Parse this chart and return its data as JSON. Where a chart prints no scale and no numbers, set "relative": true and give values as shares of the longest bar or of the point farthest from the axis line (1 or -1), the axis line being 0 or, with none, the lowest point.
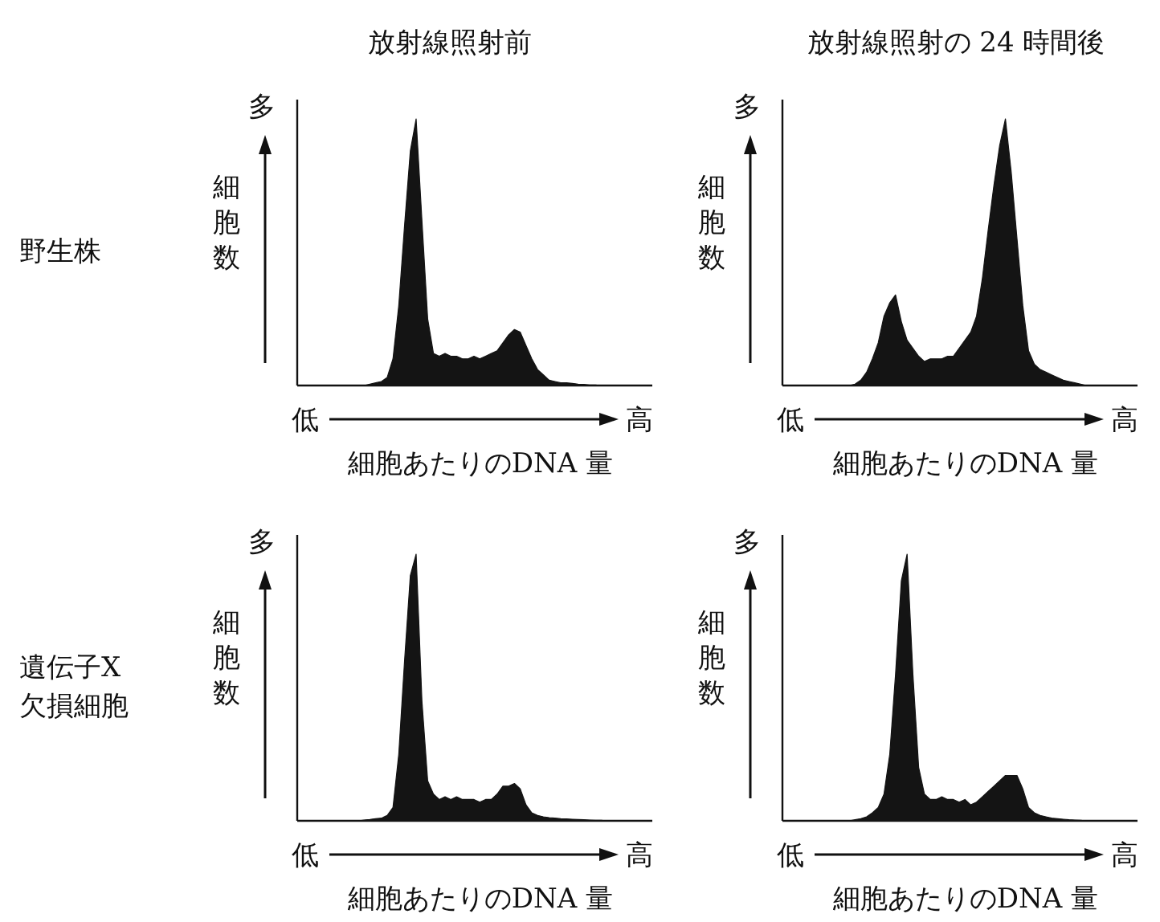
{
  "chart_data": [
    {
      "type": "area",
      "title": "放射線照射前",
      "ylabel": "細胞数",
      "xlabel": "細胞あたりのDNA 量",
      "annotations": [
        "多",
        "低",
        "高",
        "野生株"
      ],
      "relative": true,
      "color": "#141414",
      "categories": [
        null,
        null,
        null,
        null,
        null,
        null,
        null,
        null,
        null,
        null,
        null,
        null,
        null,
        null,
        null,
        null,
        null,
        null,
        null,
        null,
        null,
        null,
        null,
        null,
        null,
        null,
        null,
        null,
        null,
        null,
        null,
        null,
        null,
        null,
        null,
        null,
        null,
        null,
        null,
        null,
        null,
        null,
        null,
        null,
        null,
        null,
        null,
        null,
        null,
        null,
        null,
        null,
        null,
        null,
        null,
        null,
        null,
        null,
        null,
        null,
        null
      ],
      "values": [
        0,
        0,
        0,
        0,
        0,
        0,
        0,
        0,
        0,
        0,
        0,
        0,
        0.005,
        0.01,
        0.015,
        0.03,
        0.1,
        0.3,
        0.6,
        0.88,
        1.0,
        0.62,
        0.25,
        0.12,
        0.11,
        0.12,
        0.11,
        0.11,
        0.1,
        0.1,
        0.11,
        0.1,
        0.11,
        0.12,
        0.13,
        0.16,
        0.19,
        0.21,
        0.2,
        0.15,
        0.1,
        0.06,
        0.04,
        0.02,
        0.015,
        0.01,
        0.01,
        0.008,
        0.005,
        0.004,
        0.002,
        0.002,
        0,
        0,
        0,
        0,
        0,
        0,
        0,
        0,
        0
      ]
    },
    {
      "type": "area",
      "title": "放射線照射の 24 時間後",
      "ylabel": "細胞数",
      "xlabel": "細胞あたりのDNA 量",
      "annotations": [
        "多",
        "低",
        "高"
      ],
      "relative": true,
      "color": "#141414",
      "categories": [
        null,
        null,
        null,
        null,
        null,
        null,
        null,
        null,
        null,
        null,
        null,
        null,
        null,
        null,
        null,
        null,
        null,
        null,
        null,
        null,
        null,
        null,
        null,
        null,
        null,
        null,
        null,
        null,
        null,
        null,
        null,
        null,
        null,
        null,
        null,
        null,
        null,
        null,
        null,
        null,
        null,
        null,
        null,
        null,
        null,
        null,
        null,
        null,
        null,
        null,
        null,
        null,
        null,
        null,
        null,
        null,
        null,
        null,
        null,
        null,
        null
      ],
      "values": [
        0,
        0,
        0,
        0,
        0,
        0,
        0,
        0,
        0,
        0,
        0,
        0,
        0.005,
        0.02,
        0.05,
        0.1,
        0.16,
        0.26,
        0.31,
        0.34,
        0.24,
        0.17,
        0.14,
        0.11,
        0.09,
        0.1,
        0.1,
        0.1,
        0.11,
        0.11,
        0.14,
        0.17,
        0.2,
        0.26,
        0.4,
        0.58,
        0.75,
        0.9,
        1.0,
        0.8,
        0.55,
        0.3,
        0.13,
        0.08,
        0.06,
        0.05,
        0.04,
        0.03,
        0.02,
        0.015,
        0.01,
        0.005,
        0,
        0,
        0,
        0,
        0,
        0,
        0,
        0,
        0
      ]
    },
    {
      "type": "area",
      "ylabel": "細胞数",
      "xlabel": "細胞あたりのDNA 量",
      "annotations": [
        "多",
        "低",
        "高",
        "遺伝子X欠損細胞"
      ],
      "relative": true,
      "color": "#141414",
      "categories": [
        null,
        null,
        null,
        null,
        null,
        null,
        null,
        null,
        null,
        null,
        null,
        null,
        null,
        null,
        null,
        null,
        null,
        null,
        null,
        null,
        null,
        null,
        null,
        null,
        null,
        null,
        null,
        null,
        null,
        null,
        null,
        null,
        null,
        null,
        null,
        null,
        null,
        null,
        null,
        null,
        null,
        null,
        null,
        null,
        null,
        null,
        null,
        null,
        null,
        null,
        null,
        null,
        null,
        null,
        null,
        null,
        null,
        null,
        null,
        null,
        null
      ],
      "values": [
        0,
        0,
        0,
        0,
        0,
        0,
        0,
        0,
        0,
        0,
        0,
        0.003,
        0.005,
        0.008,
        0.01,
        0.02,
        0.05,
        0.25,
        0.6,
        0.92,
        1.0,
        0.45,
        0.15,
        0.1,
        0.08,
        0.09,
        0.08,
        0.09,
        0.08,
        0.08,
        0.08,
        0.07,
        0.08,
        0.08,
        0.1,
        0.13,
        0.13,
        0.14,
        0.12,
        0.06,
        0.03,
        0.02,
        0.015,
        0.012,
        0.01,
        0.008,
        0.007,
        0.006,
        0.005,
        0.004,
        0.003,
        0.002,
        0.002,
        0,
        0,
        0,
        0,
        0,
        0,
        0,
        0
      ]
    },
    {
      "type": "area",
      "ylabel": "細胞数",
      "xlabel": "細胞あたりのDNA 量",
      "annotations": [
        "多",
        "低",
        "高"
      ],
      "relative": true,
      "color": "#141414",
      "categories": [
        null,
        null,
        null,
        null,
        null,
        null,
        null,
        null,
        null,
        null,
        null,
        null,
        null,
        null,
        null,
        null,
        null,
        null,
        null,
        null,
        null,
        null,
        null,
        null,
        null,
        null,
        null,
        null,
        null,
        null,
        null,
        null,
        null,
        null,
        null,
        null,
        null,
        null,
        null,
        null,
        null,
        null,
        null,
        null,
        null,
        null,
        null,
        null,
        null,
        null,
        null,
        null,
        null,
        null,
        null,
        null,
        null,
        null,
        null,
        null,
        null
      ],
      "values": [
        0,
        0,
        0,
        0,
        0,
        0,
        0,
        0,
        0,
        0,
        0,
        0,
        0.004,
        0.008,
        0.015,
        0.03,
        0.05,
        0.1,
        0.25,
        0.55,
        0.9,
        1.0,
        0.55,
        0.2,
        0.1,
        0.08,
        0.08,
        0.09,
        0.08,
        0.08,
        0.07,
        0.08,
        0.06,
        0.07,
        0.09,
        0.11,
        0.13,
        0.15,
        0.17,
        0.17,
        0.17,
        0.12,
        0.05,
        0.03,
        0.02,
        0.015,
        0.01,
        0.008,
        0.006,
        0.004,
        0.003,
        0.002,
        0,
        0,
        0,
        0,
        0,
        0,
        0,
        0,
        0
      ]
    }
  ]
}
